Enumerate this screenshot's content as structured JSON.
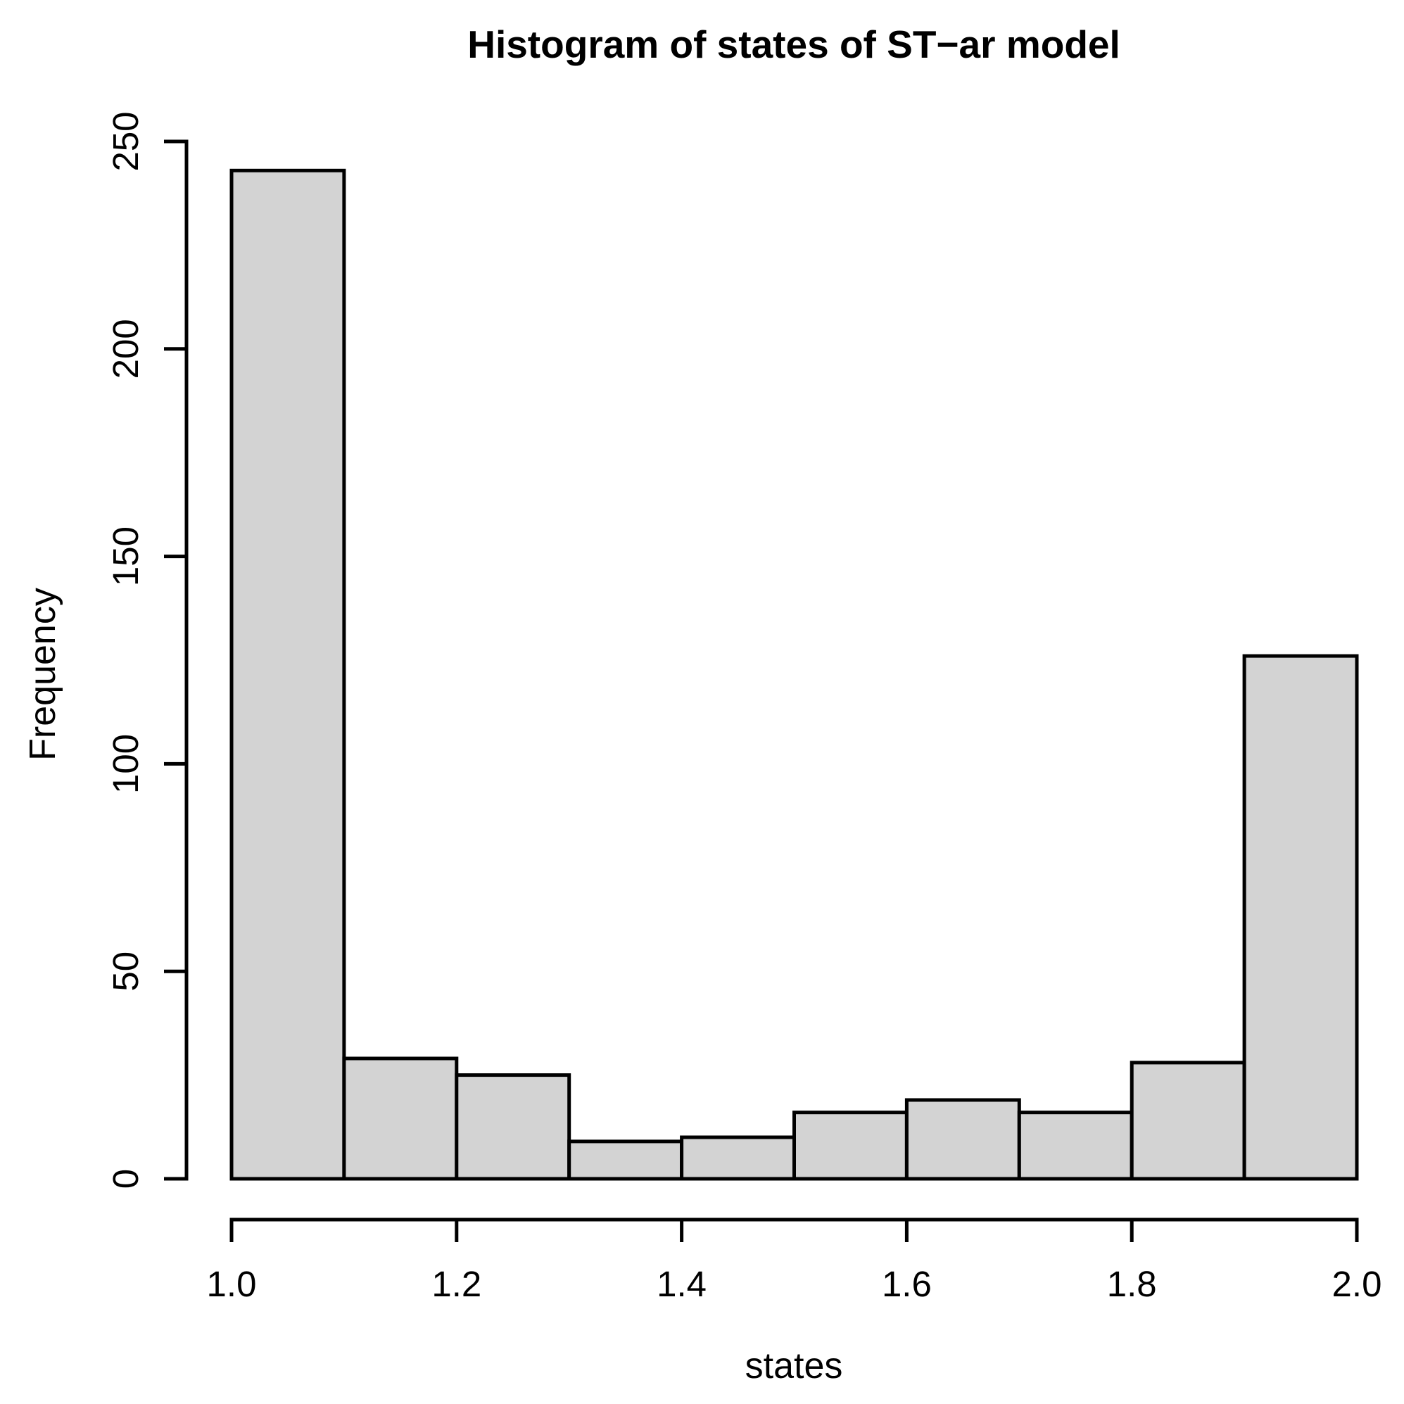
{
  "title": "Histogram of states of ST−ar model",
  "chart_data": {
    "type": "bar",
    "subtype": "histogram",
    "title": "Histogram of states of ST−ar model",
    "xlabel": "states",
    "ylabel": "Frequency",
    "bin_edges": [
      1.0,
      1.1,
      1.2,
      1.3,
      1.4,
      1.5,
      1.6,
      1.7,
      1.8,
      1.9,
      2.0
    ],
    "values": [
      243,
      29,
      25,
      9,
      10,
      16,
      19,
      16,
      28,
      126
    ],
    "x_ticks": [
      {
        "v": 1.0,
        "label": "1.0"
      },
      {
        "v": 1.2,
        "label": "1.2"
      },
      {
        "v": 1.4,
        "label": "1.4"
      },
      {
        "v": 1.6,
        "label": "1.6"
      },
      {
        "v": 1.8,
        "label": "1.8"
      },
      {
        "v": 2.0,
        "label": "2.0"
      }
    ],
    "y_ticks": [
      {
        "v": 0,
        "label": "0"
      },
      {
        "v": 50,
        "label": "50"
      },
      {
        "v": 100,
        "label": "100"
      },
      {
        "v": 150,
        "label": "150"
      },
      {
        "v": 200,
        "label": "200"
      },
      {
        "v": 250,
        "label": "250"
      }
    ],
    "xlim": [
      1.0,
      2.0
    ],
    "ylim": [
      0,
      250
    ],
    "grid": false,
    "legend": "none",
    "colors": {
      "bar_fill": "#d3d3d3",
      "bar_stroke": "#000000",
      "axis": "#000000",
      "text": "#000000",
      "background": "#ffffff"
    }
  }
}
